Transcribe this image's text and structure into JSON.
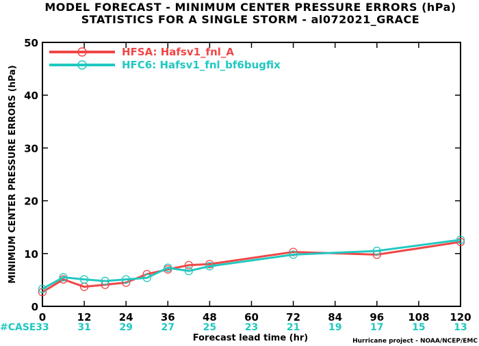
{
  "chart_data": {
    "type": "line",
    "title": "MODEL FORECAST - MINIMUM CENTER PRESSURE ERRORS (hPa)",
    "subtitle": "STATISTICS FOR A SINGLE STORM - al072021_GRACE",
    "xlabel": "Forecast lead time (hr)",
    "ylabel": "MINIMUM CENTER PRESSURE ERRORS (hPa)",
    "xlim": [
      0,
      120
    ],
    "ylim": [
      0,
      50
    ],
    "xticks": [
      0,
      12,
      24,
      36,
      48,
      60,
      72,
      84,
      96,
      108,
      120
    ],
    "yticks": [
      0,
      10,
      20,
      30,
      40,
      50
    ],
    "grid": false,
    "legend_position": "top-left",
    "series": [
      {
        "name": "HFSA: Hafsv1_fnl_A",
        "color": "#f04646",
        "x": [
          0,
          6,
          12,
          18,
          24,
          30,
          36,
          42,
          48,
          72,
          96,
          120
        ],
        "y": [
          2.7,
          5.1,
          3.7,
          4.1,
          4.5,
          6.1,
          7.0,
          7.8,
          8.0,
          10.3,
          9.8,
          12.2
        ]
      },
      {
        "name": "HFC6: Hafsv1_fnl_bf6bugfix",
        "color": "#20c8c0",
        "x": [
          0,
          6,
          12,
          18,
          24,
          30,
          36,
          42,
          48,
          72,
          96,
          120
        ],
        "y": [
          3.3,
          5.5,
          5.1,
          4.8,
          5.1,
          5.4,
          7.3,
          6.7,
          7.6,
          9.8,
          10.5,
          12.6
        ]
      }
    ],
    "case_counts": {
      "label": "#CASE",
      "x": [
        0,
        12,
        24,
        36,
        48,
        60,
        72,
        84,
        96,
        108,
        120
      ],
      "values": [
        "33",
        "31",
        "29",
        "27",
        "25",
        "23",
        "21",
        "19",
        "17",
        "15",
        "13"
      ]
    },
    "credit": "Hurricane project - NOAA/NCEP/EMC"
  }
}
